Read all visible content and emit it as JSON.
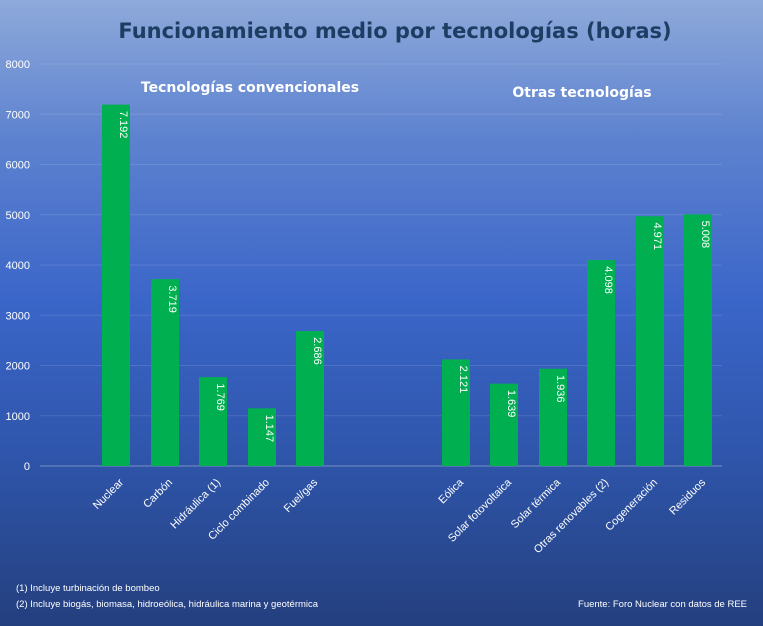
{
  "chart_data": {
    "type": "bar",
    "title": "Funcionamiento medio por tecnologías (horas)",
    "ylim": [
      0,
      8000
    ],
    "yticks": [
      0,
      1000,
      2000,
      3000,
      4000,
      5000,
      6000,
      7000,
      8000
    ],
    "grid": true,
    "bar_color": "#00b050",
    "groups": [
      {
        "label": "Tecnologías convencionales",
        "categories": [
          "Nuclear",
          "Carbón",
          "Hidráulica (1)",
          "Ciclo combinado",
          "Fuel/gas"
        ],
        "values": [
          7192,
          3719,
          1769,
          1147,
          2686
        ],
        "value_labels": [
          "7.192",
          "3.719",
          "1.769",
          "1.147",
          "2.686"
        ]
      },
      {
        "label": "Otras tecnologías",
        "categories": [
          "Eólica",
          "Solar fotovoltaica",
          "Solar térmica",
          "Otras renovables (2)",
          "Cogeneración",
          "Residuos"
        ],
        "values": [
          2121,
          1639,
          1936,
          4098,
          4971,
          5008
        ],
        "value_labels": [
          "2.121",
          "1.639",
          "1.936",
          "4.098",
          "4.971",
          "5.008"
        ]
      }
    ]
  },
  "notes": [
    "(1) Incluye turbinación de bombeo",
    "(2) Incluye biogás, biomasa, hidroeólica, hidráulica marina y geotérmica"
  ],
  "source": "Fuente:  Foro Nuclear con datos de REE"
}
